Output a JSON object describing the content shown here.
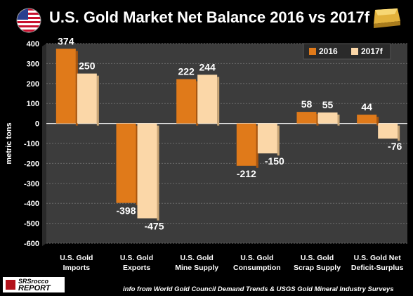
{
  "header": {
    "title": "U.S. Gold Market Net Balance 2016 vs 2017f"
  },
  "footer": {
    "source": "info from World Gold Council Demand Trends & USGS Gold Mineral Industry Surveys",
    "logo_line1": "SRSrocco",
    "logo_line2": "REPORT"
  },
  "colors": {
    "series_2016": "#e07a1a",
    "series_2017": "#fbd7a8",
    "plot_bg": "#3c3c3c",
    "background": "#000000"
  },
  "icons": [
    "us-flag-icon",
    "gold-bar-icon"
  ],
  "chart_data": {
    "type": "bar",
    "categories": [
      [
        "U.S. Gold",
        "Imports"
      ],
      [
        "U.S. Gold",
        "Exports"
      ],
      [
        "U.S. Gold",
        "Mine Supply"
      ],
      [
        "U.S. Gold",
        "Consumption"
      ],
      [
        "U.S. Gold",
        "Scrap Supply"
      ],
      [
        "U.S. Gold Net",
        "Deficit-Surplus"
      ]
    ],
    "series": [
      {
        "name": "2016",
        "values": [
          374,
          -398,
          222,
          -212,
          58,
          44
        ]
      },
      {
        "name": "2017f",
        "values": [
          250,
          -475,
          244,
          -150,
          55,
          -76
        ]
      }
    ],
    "data_labels": [
      [
        "374",
        "-398",
        "222",
        "-212",
        "58",
        "44"
      ],
      [
        "250",
        "-475",
        "244",
        "-150",
        "55",
        "-76"
      ]
    ],
    "ylabel": "metric tons",
    "ylim": [
      -600,
      400
    ],
    "yticks": [
      400,
      300,
      200,
      100,
      0,
      -100,
      -200,
      -300,
      -400,
      -500,
      -600
    ],
    "grid": true,
    "legend": "top-right"
  }
}
